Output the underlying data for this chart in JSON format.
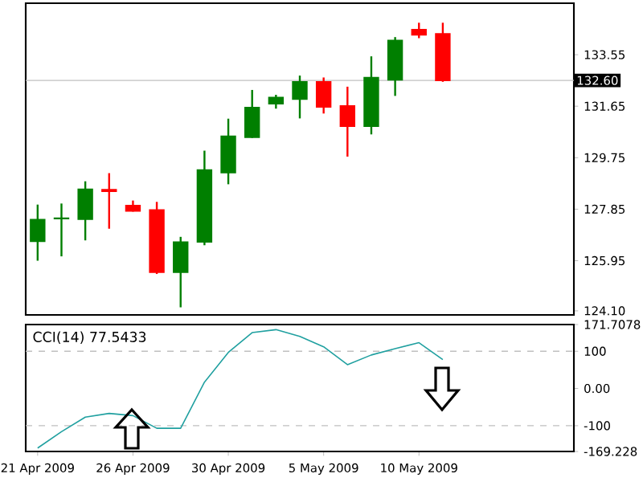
{
  "chart_data": [
    {
      "type": "candlestick",
      "ohlc": [
        [
          126.66,
          128.02,
          125.95,
          127.47
        ],
        [
          127.5,
          128.06,
          126.11,
          127.52
        ],
        [
          127.48,
          128.88,
          126.7,
          128.59
        ],
        [
          128.57,
          129.18,
          127.13,
          128.51
        ],
        [
          127.99,
          128.17,
          127.76,
          127.78
        ],
        [
          127.82,
          128.12,
          125.46,
          125.52
        ],
        [
          125.52,
          126.83,
          124.23,
          126.64
        ],
        [
          126.64,
          130.01,
          126.52,
          129.3
        ],
        [
          129.2,
          131.19,
          128.77,
          130.54
        ],
        [
          130.5,
          132.25,
          130.48,
          131.6
        ],
        [
          131.74,
          132.07,
          131.56,
          131.97
        ],
        [
          131.91,
          132.78,
          131.2,
          132.55
        ],
        [
          132.55,
          132.71,
          131.38,
          131.62
        ],
        [
          131.66,
          132.37,
          129.79,
          130.91
        ],
        [
          130.91,
          133.49,
          130.61,
          132.71
        ],
        [
          132.62,
          134.2,
          132.03,
          134.08
        ],
        [
          134.48,
          134.73,
          134.16,
          134.28
        ],
        [
          134.32,
          134.73,
          132.55,
          132.6
        ],
        null,
        null,
        null,
        null,
        null
      ],
      "colors": [
        "#007f00",
        "#007f00",
        "#007f00",
        "#ff0000",
        "#ff0000",
        "#ff0000",
        "#007f00",
        "#007f00",
        "#007f00",
        "#007f00",
        "#007f00",
        "#007f00",
        "#ff0000",
        "#ff0000",
        "#007f00",
        "#007f00",
        "#ff0000",
        "#ff0000",
        null,
        null,
        null,
        null,
        null
      ],
      "ylim": [
        123.95,
        135.45
      ],
      "yticks": [
        {
          "value": 124.1,
          "label": "124.10"
        },
        125.95,
        127.85,
        129.75,
        131.65,
        133.55
      ],
      "ref_lines": [
        {
          "axis": "y",
          "value": 132.6,
          "label": "132.60",
          "color": "#c0c0c0"
        }
      ],
      "tick_labels": "y"
    },
    {
      "type": "line",
      "title": "CCI(14) 77.5433",
      "categories": [
        "21 Apr 2009",
        null,
        null,
        null,
        "26 Apr 2009",
        null,
        null,
        null,
        "30 Apr 2009",
        null,
        null,
        null,
        "5 May 2009",
        null,
        null,
        null,
        "10 May 2009",
        null,
        null,
        null,
        null,
        null,
        null
      ],
      "series": [
        {
          "color": "#20a0a0",
          "values": [
            -160,
            -116,
            -77,
            -67,
            -73,
            -107,
            -107,
            17,
            97,
            150,
            158,
            140,
            112,
            64,
            90,
            107,
            123,
            77.5433,
            null,
            null,
            null,
            null,
            null
          ]
        }
      ],
      "ylim": [
        -169.228,
        171.7078
      ],
      "yticks": [
        171.7078,
        100,
        {
          "value": 0,
          "label": "0.00"
        },
        -100,
        -169.228
      ],
      "ref_lines": [
        {
          "axis": "y",
          "value": 100,
          "color": "#c0c0c0",
          "line_style": "dashed"
        },
        {
          "axis": "y",
          "value": -100,
          "color": "#c0c0c0",
          "line_style": "dashed"
        }
      ]
    }
  ]
}
